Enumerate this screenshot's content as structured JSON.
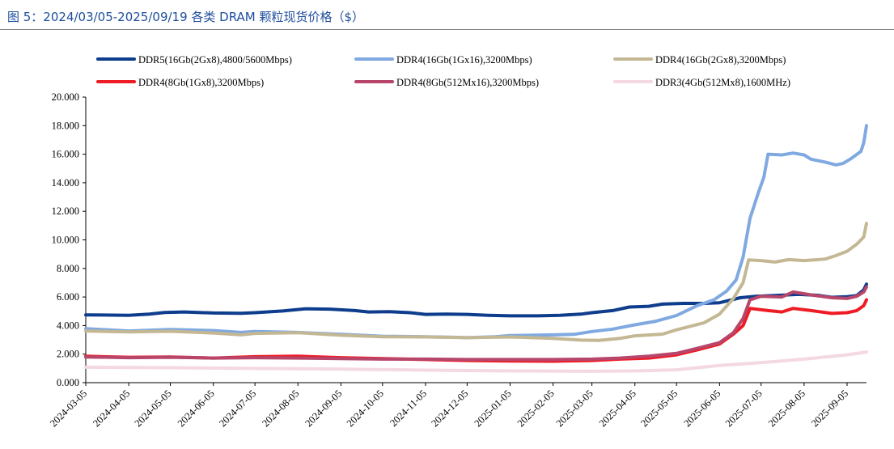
{
  "figure": {
    "title": "图 5：2024/03/05-2025/09/19 各类 DRAM 颗粒现货价格（$）"
  },
  "chart_data": {
    "type": "line",
    "title": "图 5：2024/03/05-2025/09/19 各类 DRAM 颗粒现货价格（$）",
    "xlabel": "",
    "ylabel": "",
    "ylim": [
      0,
      20
    ],
    "yticks": [
      "0.000",
      "2.000",
      "4.000",
      "6.000",
      "8.000",
      "10.000",
      "12.000",
      "14.000",
      "16.000",
      "18.000",
      "20.000"
    ],
    "xlim": [
      "2024-03-05",
      "2025-09-19"
    ],
    "xticks": [
      "2024-03-05",
      "2024-04-05",
      "2024-05-05",
      "2024-06-05",
      "2024-07-05",
      "2024-08-05",
      "2024-09-05",
      "2024-10-05",
      "2024-11-05",
      "2024-12-05",
      "2025-01-05",
      "2025-02-05",
      "2025-03-05",
      "2025-04-05",
      "2025-05-05",
      "2025-06-05",
      "2025-07-05",
      "2025-08-05",
      "2025-09-05"
    ],
    "grid": false,
    "legend_position": "top",
    "series": [
      {
        "name": "DDR5(16Gb(2Gx8),4800/5600Mbps)",
        "color": "#0d3d8c",
        "points": [
          [
            "2024-03-05",
            4.75
          ],
          [
            "2024-04-05",
            4.72
          ],
          [
            "2024-04-20",
            4.8
          ],
          [
            "2024-05-01",
            4.92
          ],
          [
            "2024-05-15",
            4.95
          ],
          [
            "2024-06-05",
            4.88
          ],
          [
            "2024-06-25",
            4.86
          ],
          [
            "2024-07-05",
            4.9
          ],
          [
            "2024-07-25",
            5.02
          ],
          [
            "2024-08-10",
            5.17
          ],
          [
            "2024-08-28",
            5.15
          ],
          [
            "2024-09-15",
            5.05
          ],
          [
            "2024-09-25",
            4.95
          ],
          [
            "2024-10-10",
            4.97
          ],
          [
            "2024-10-25",
            4.9
          ],
          [
            "2024-11-05",
            4.78
          ],
          [
            "2024-11-20",
            4.8
          ],
          [
            "2024-12-05",
            4.78
          ],
          [
            "2024-12-20",
            4.72
          ],
          [
            "2025-01-05",
            4.68
          ],
          [
            "2025-01-25",
            4.68
          ],
          [
            "2025-02-10",
            4.72
          ],
          [
            "2025-02-25",
            4.8
          ],
          [
            "2025-03-05",
            4.9
          ],
          [
            "2025-03-20",
            5.05
          ],
          [
            "2025-04-01",
            5.3
          ],
          [
            "2025-04-15",
            5.35
          ],
          [
            "2025-04-25",
            5.5
          ],
          [
            "2025-05-10",
            5.55
          ],
          [
            "2025-05-25",
            5.55
          ],
          [
            "2025-06-05",
            5.6
          ],
          [
            "2025-06-20",
            5.95
          ],
          [
            "2025-07-01",
            6.05
          ],
          [
            "2025-07-15",
            6.1
          ],
          [
            "2025-08-01",
            6.18
          ],
          [
            "2025-08-15",
            6.12
          ],
          [
            "2025-08-25",
            5.98
          ],
          [
            "2025-09-05",
            6.02
          ],
          [
            "2025-09-12",
            6.1
          ],
          [
            "2025-09-17",
            6.5
          ],
          [
            "2025-09-19",
            6.9
          ]
        ]
      },
      {
        "name": "DDR4(16Gb(1Gx16),3200Mbps)",
        "color": "#7fa9e0",
        "points": [
          [
            "2024-03-05",
            3.78
          ],
          [
            "2024-04-05",
            3.62
          ],
          [
            "2024-05-05",
            3.72
          ],
          [
            "2024-06-05",
            3.65
          ],
          [
            "2024-06-25",
            3.52
          ],
          [
            "2024-07-05",
            3.58
          ],
          [
            "2024-08-05",
            3.52
          ],
          [
            "2024-09-05",
            3.38
          ],
          [
            "2024-10-05",
            3.25
          ],
          [
            "2024-11-05",
            3.22
          ],
          [
            "2024-11-25",
            3.18
          ],
          [
            "2024-12-05",
            3.15
          ],
          [
            "2024-12-25",
            3.22
          ],
          [
            "2025-01-05",
            3.3
          ],
          [
            "2025-02-05",
            3.35
          ],
          [
            "2025-02-20",
            3.38
          ],
          [
            "2025-03-05",
            3.58
          ],
          [
            "2025-03-20",
            3.75
          ],
          [
            "2025-04-05",
            4.05
          ],
          [
            "2025-04-20",
            4.3
          ],
          [
            "2025-05-05",
            4.7
          ],
          [
            "2025-05-20",
            5.4
          ],
          [
            "2025-06-01",
            5.8
          ],
          [
            "2025-06-10",
            6.4
          ],
          [
            "2025-06-17",
            7.2
          ],
          [
            "2025-06-22",
            8.8
          ],
          [
            "2025-06-27",
            11.5
          ],
          [
            "2025-07-03",
            13.3
          ],
          [
            "2025-07-07",
            14.4
          ],
          [
            "2025-07-10",
            16.0
          ],
          [
            "2025-07-20",
            15.95
          ],
          [
            "2025-07-28",
            16.08
          ],
          [
            "2025-08-05",
            15.95
          ],
          [
            "2025-08-10",
            15.65
          ],
          [
            "2025-08-20",
            15.45
          ],
          [
            "2025-08-28",
            15.25
          ],
          [
            "2025-09-02",
            15.35
          ],
          [
            "2025-09-08",
            15.7
          ],
          [
            "2025-09-15",
            16.2
          ],
          [
            "2025-09-17",
            16.8
          ],
          [
            "2025-09-19",
            18.0
          ]
        ]
      },
      {
        "name": "DDR4(16Gb(2Gx8),3200Mbps)",
        "color": "#c4b894",
        "points": [
          [
            "2024-03-05",
            3.62
          ],
          [
            "2024-04-05",
            3.55
          ],
          [
            "2024-05-05",
            3.6
          ],
          [
            "2024-06-05",
            3.48
          ],
          [
            "2024-06-25",
            3.35
          ],
          [
            "2024-07-05",
            3.45
          ],
          [
            "2024-08-05",
            3.5
          ],
          [
            "2024-09-05",
            3.32
          ],
          [
            "2024-10-05",
            3.22
          ],
          [
            "2024-11-05",
            3.2
          ],
          [
            "2024-12-05",
            3.15
          ],
          [
            "2025-01-05",
            3.2
          ],
          [
            "2025-02-05",
            3.1
          ],
          [
            "2025-02-25",
            2.98
          ],
          [
            "2025-03-10",
            2.96
          ],
          [
            "2025-03-25",
            3.1
          ],
          [
            "2025-04-05",
            3.28
          ],
          [
            "2025-04-25",
            3.4
          ],
          [
            "2025-05-05",
            3.7
          ],
          [
            "2025-05-25",
            4.2
          ],
          [
            "2025-06-05",
            4.8
          ],
          [
            "2025-06-15",
            5.9
          ],
          [
            "2025-06-22",
            7.0
          ],
          [
            "2025-06-26",
            8.6
          ],
          [
            "2025-07-05",
            8.55
          ],
          [
            "2025-07-15",
            8.45
          ],
          [
            "2025-07-25",
            8.62
          ],
          [
            "2025-08-05",
            8.55
          ],
          [
            "2025-08-20",
            8.65
          ],
          [
            "2025-08-28",
            8.9
          ],
          [
            "2025-09-05",
            9.2
          ],
          [
            "2025-09-12",
            9.7
          ],
          [
            "2025-09-17",
            10.2
          ],
          [
            "2025-09-19",
            11.15
          ]
        ]
      },
      {
        "name": "DDR4(8Gb(1Gx8),3200Mbps)",
        "color": "#ee1c25",
        "points": [
          [
            "2024-03-05",
            1.85
          ],
          [
            "2024-04-05",
            1.78
          ],
          [
            "2024-05-05",
            1.8
          ],
          [
            "2024-06-05",
            1.72
          ],
          [
            "2024-07-05",
            1.82
          ],
          [
            "2024-08-05",
            1.85
          ],
          [
            "2024-09-05",
            1.75
          ],
          [
            "2024-10-05",
            1.68
          ],
          [
            "2024-11-05",
            1.62
          ],
          [
            "2024-12-05",
            1.55
          ],
          [
            "2025-01-05",
            1.52
          ],
          [
            "2025-02-05",
            1.5
          ],
          [
            "2025-03-05",
            1.55
          ],
          [
            "2025-03-25",
            1.65
          ],
          [
            "2025-04-15",
            1.72
          ],
          [
            "2025-05-05",
            1.95
          ],
          [
            "2025-05-20",
            2.3
          ],
          [
            "2025-06-05",
            2.7
          ],
          [
            "2025-06-15",
            3.4
          ],
          [
            "2025-06-22",
            4.0
          ],
          [
            "2025-06-27",
            5.2
          ],
          [
            "2025-07-10",
            5.05
          ],
          [
            "2025-07-20",
            4.95
          ],
          [
            "2025-07-28",
            5.2
          ],
          [
            "2025-08-10",
            5.05
          ],
          [
            "2025-08-25",
            4.85
          ],
          [
            "2025-09-05",
            4.9
          ],
          [
            "2025-09-12",
            5.05
          ],
          [
            "2025-09-17",
            5.4
          ],
          [
            "2025-09-19",
            5.8
          ]
        ]
      },
      {
        "name": "DDR4(8Gb(512Mx16),3200Mbps)",
        "color": "#b8466a",
        "points": [
          [
            "2024-03-05",
            1.8
          ],
          [
            "2024-04-05",
            1.75
          ],
          [
            "2024-05-05",
            1.78
          ],
          [
            "2024-06-05",
            1.72
          ],
          [
            "2024-07-05",
            1.75
          ],
          [
            "2024-08-05",
            1.72
          ],
          [
            "2024-09-05",
            1.68
          ],
          [
            "2024-10-05",
            1.65
          ],
          [
            "2024-11-05",
            1.65
          ],
          [
            "2024-12-05",
            1.62
          ],
          [
            "2025-01-05",
            1.62
          ],
          [
            "2025-02-05",
            1.62
          ],
          [
            "2025-03-05",
            1.65
          ],
          [
            "2025-03-25",
            1.72
          ],
          [
            "2025-04-15",
            1.85
          ],
          [
            "2025-05-05",
            2.05
          ],
          [
            "2025-05-20",
            2.4
          ],
          [
            "2025-06-05",
            2.8
          ],
          [
            "2025-06-15",
            3.5
          ],
          [
            "2025-06-22",
            4.5
          ],
          [
            "2025-06-27",
            5.8
          ],
          [
            "2025-07-05",
            6.05
          ],
          [
            "2025-07-20",
            6.0
          ],
          [
            "2025-07-28",
            6.35
          ],
          [
            "2025-08-10",
            6.15
          ],
          [
            "2025-08-25",
            5.95
          ],
          [
            "2025-09-05",
            5.9
          ],
          [
            "2025-09-12",
            6.05
          ],
          [
            "2025-09-17",
            6.35
          ],
          [
            "2025-09-19",
            6.7
          ]
        ]
      },
      {
        "name": "DDR3(4Gb(512Mx8),1600MHz)",
        "color": "#f4d8e2",
        "points": [
          [
            "2024-03-05",
            1.08
          ],
          [
            "2024-05-05",
            1.05
          ],
          [
            "2024-07-05",
            1.0
          ],
          [
            "2024-09-05",
            0.95
          ],
          [
            "2024-11-05",
            0.88
          ],
          [
            "2025-01-05",
            0.82
          ],
          [
            "2025-03-05",
            0.8
          ],
          [
            "2025-04-05",
            0.82
          ],
          [
            "2025-05-05",
            0.9
          ],
          [
            "2025-06-05",
            1.2
          ],
          [
            "2025-07-05",
            1.4
          ],
          [
            "2025-08-05",
            1.65
          ],
          [
            "2025-09-05",
            1.95
          ],
          [
            "2025-09-19",
            2.15
          ]
        ]
      }
    ]
  }
}
